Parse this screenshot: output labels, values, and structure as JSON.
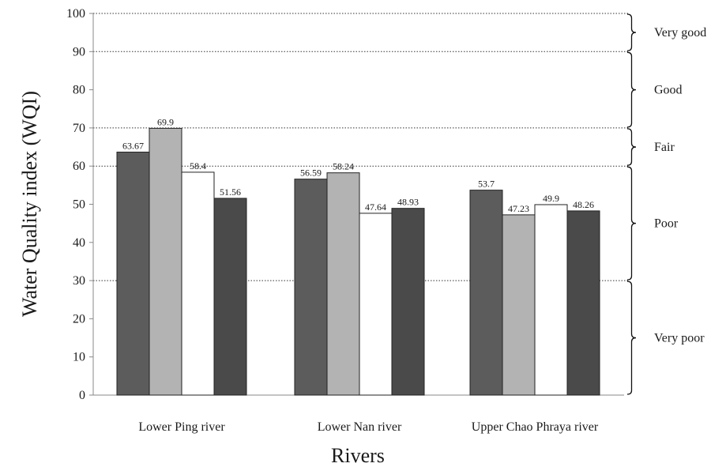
{
  "chart_data": {
    "type": "bar",
    "xlabel": "Rivers",
    "ylabel": "Water Quality index (WQI)",
    "ylim": [
      0,
      100
    ],
    "yticks": [
      0,
      10,
      20,
      30,
      40,
      50,
      60,
      70,
      80,
      90,
      100
    ],
    "categories": [
      "Lower Ping river",
      "Lower Nan river",
      "Upper Chao Phraya river"
    ],
    "series": [
      {
        "values": [
          63.67,
          56.59,
          53.7
        ],
        "color": "#5c5c5c"
      },
      {
        "values": [
          69.9,
          58.24,
          47.23
        ],
        "color": "#b3b3b3"
      },
      {
        "values": [
          58.4,
          47.64,
          49.9
        ],
        "color": "#ffffff"
      },
      {
        "values": [
          51.56,
          48.93,
          48.26
        ],
        "color": "#4a4a4a"
      }
    ],
    "data_labels": [
      [
        "63.67",
        "56.59",
        "53.7"
      ],
      [
        "69.9",
        "58.24",
        "47.23"
      ],
      [
        "58.4",
        "47.64",
        "49.9"
      ],
      [
        "51.56",
        "48.93",
        "48.26"
      ]
    ],
    "bands": [
      {
        "label": "Very good",
        "from": 90,
        "to": 100
      },
      {
        "label": "Good",
        "from": 70,
        "to": 90
      },
      {
        "label": "Fair",
        "from": 60,
        "to": 70
      },
      {
        "label": "Poor",
        "from": 30,
        "to": 60
      },
      {
        "label": "Very poor",
        "from": 0,
        "to": 30
      }
    ],
    "threshold_lines": [
      30,
      60,
      70,
      90,
      100
    ],
    "grid": false,
    "legend": "none"
  }
}
